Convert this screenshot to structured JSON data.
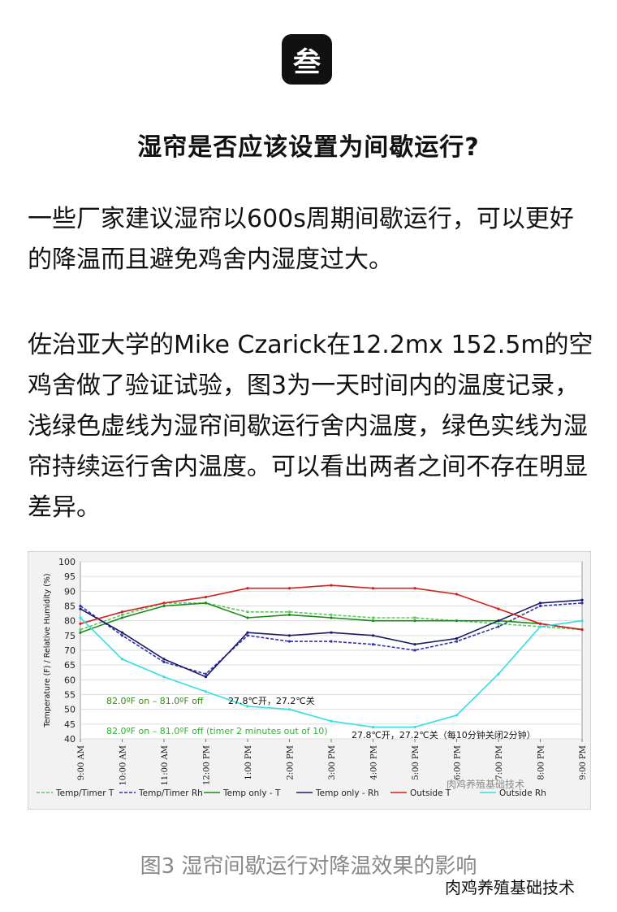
{
  "badge": {
    "label": "叁"
  },
  "heading": "湿帘是否应该设置为间歇运行?",
  "paragraphs": [
    "一些厂家建议湿帘以600s周期间歇运行，可以更好的降温而且避免鸡舍内湿度过大。",
    "佐治亚大学的Mike Czarick在12.2mx 152.5m的空鸡舍做了验证试验，图3为一天时间内的温度记录，浅绿色虚线为湿帘间歇运行舍内温度，绿色实线为湿帘持续运行舍内温度。可以看出两者之间不存在明显差异。"
  ],
  "caption": "图3 湿帘间歇运行对降温效果的影响",
  "watermark": "肉鸡养殖基础技术",
  "chart_data": {
    "type": "line",
    "ylabel": "Temperature (F) / Relative Humidity (%)",
    "ylim": [
      40,
      100
    ],
    "yticks": [
      40,
      45,
      50,
      55,
      60,
      65,
      70,
      75,
      80,
      85,
      90,
      95,
      100
    ],
    "categories": [
      "9:00 AM",
      "10:00 AM",
      "11:00 AM",
      "12:00 PM",
      "1:00 PM",
      "2:00 PM",
      "3:00 PM",
      "4:00 PM",
      "5:00 PM",
      "6:00 PM",
      "7:00 PM",
      "8:00 PM",
      "9:00 PM"
    ],
    "grid": true,
    "legend_position": "bottom",
    "annotations": [
      {
        "text": "82.0ºF on – 81.0ºF off",
        "color": "#3a8a1a"
      },
      {
        "text": "27.8℃开，27.2℃关",
        "color": "#111111"
      },
      {
        "text": "82.0ºF on – 81.0ºF off (timer 2 minutes out of 10)",
        "color": "#2fb52f"
      },
      {
        "text": "27.8℃开，27.2℃关（每10分钟关闭2分钟）",
        "color": "#111111"
      }
    ],
    "chart_watermark": "肉鸡养殖基础技术",
    "series": [
      {
        "name": "Temp/Timer T",
        "color": "#5cc85c",
        "dash": true,
        "values": [
          77,
          82,
          86,
          86,
          83,
          83,
          82,
          81,
          81,
          80,
          79,
          78,
          77
        ]
      },
      {
        "name": "Temp/Timer Rh",
        "color": "#3030b0",
        "dash": true,
        "values": [
          85,
          75,
          66,
          62,
          75,
          73,
          73,
          72,
          70,
          73,
          78,
          85,
          86
        ]
      },
      {
        "name": "Temp only - T",
        "color": "#1a8a1a",
        "dash": false,
        "values": [
          76,
          81,
          85,
          86,
          81,
          82,
          81,
          80,
          80,
          80,
          80,
          79,
          77
        ]
      },
      {
        "name": "Temp only - Rh",
        "color": "#1c1c60",
        "dash": false,
        "values": [
          84,
          76,
          67,
          61,
          76,
          75,
          76,
          75,
          72,
          74,
          80,
          86,
          87
        ]
      },
      {
        "name": "Outside T",
        "color": "#d02020",
        "dash": false,
        "values": [
          79,
          83,
          86,
          88,
          91,
          91,
          92,
          91,
          91,
          89,
          84,
          79,
          77
        ]
      },
      {
        "name": "Outside Rh",
        "color": "#33e0e0",
        "dash": false,
        "values": [
          81,
          67,
          61,
          56,
          51,
          50,
          46,
          44,
          44,
          48,
          62,
          78,
          80
        ]
      }
    ]
  }
}
